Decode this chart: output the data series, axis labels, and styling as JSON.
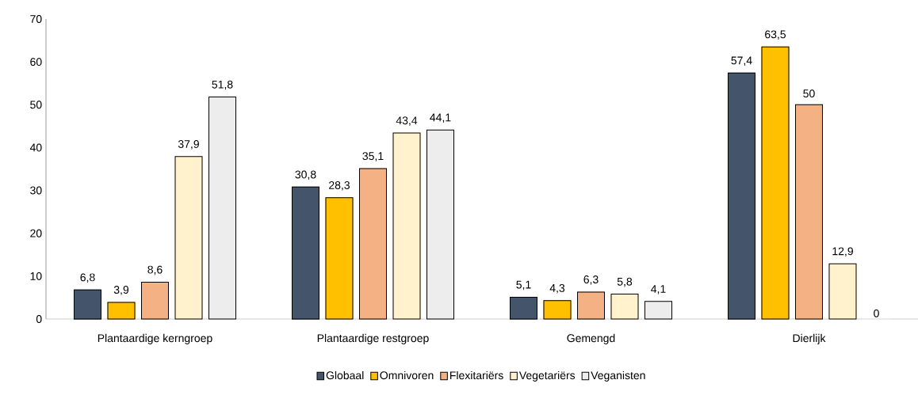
{
  "chart_data": {
    "type": "bar",
    "categories": [
      "Plantaardige kerngroep",
      "Plantaardige restgroep",
      "Gemengd",
      "Dierlijk"
    ],
    "series": [
      {
        "name": "Globaal",
        "color": "#44546a",
        "values": [
          6.8,
          30.8,
          5.1,
          57.4
        ],
        "value_labels": [
          "6,8",
          "30,8",
          "5,1",
          "57,4"
        ]
      },
      {
        "name": "Omnivoren",
        "color": "#ffc000",
        "values": [
          3.9,
          28.3,
          4.3,
          63.5
        ],
        "value_labels": [
          "3,9",
          "28,3",
          "4,3",
          "63,5"
        ]
      },
      {
        "name": "Flexitariërs",
        "color": "#f4b183",
        "values": [
          8.6,
          35.1,
          6.3,
          50
        ],
        "value_labels": [
          "8,6",
          "35,1",
          "6,3",
          "50"
        ]
      },
      {
        "name": "Vegetariërs",
        "color": "#fff2cc",
        "values": [
          37.9,
          43.4,
          5.8,
          12.9
        ],
        "value_labels": [
          "37,9",
          "43,4",
          "5,8",
          "12,9"
        ]
      },
      {
        "name": "Veganisten",
        "color": "#ededed",
        "values": [
          51.8,
          44.1,
          4.1,
          0
        ],
        "value_labels": [
          "51,8",
          "44,1",
          "4,1",
          "0"
        ]
      }
    ],
    "ylim": [
      0,
      70
    ],
    "yticks": [
      0,
      10,
      20,
      30,
      40,
      50,
      60,
      70
    ],
    "grid": false,
    "legend": "bottom"
  }
}
